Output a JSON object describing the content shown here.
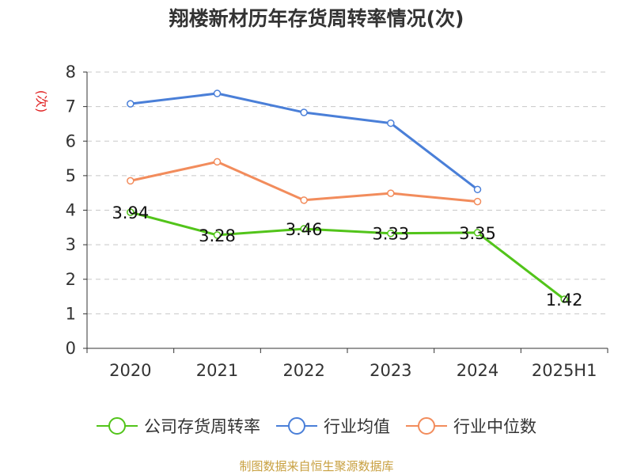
{
  "title": "翔楼新材历年存货周转率情况(次)",
  "footer": "制图数据来自恒生聚源数据库",
  "colors": {
    "company": "#52c41a",
    "industry_avg": "#4a7fd8",
    "industry_median": "#f28c5c",
    "footer": "#c8a040",
    "ylabel": "#e02020"
  },
  "chart_data": {
    "type": "line",
    "title": "翔楼新材历年存货周转率情况(次)",
    "ylabel": "(次)",
    "xlabel": "",
    "categories": [
      "2020",
      "2021",
      "2022",
      "2023",
      "2024",
      "2025H1"
    ],
    "ylim": [
      0,
      8
    ],
    "yticks": [
      0,
      1,
      2,
      3,
      4,
      5,
      6,
      7,
      8
    ],
    "grid": true,
    "legend_position": "bottom",
    "series": [
      {
        "name": "公司存货周转率",
        "values": [
          3.94,
          3.28,
          3.46,
          3.33,
          3.35,
          1.42
        ],
        "labels": [
          "3.94",
          "3.28",
          "3.46",
          "3.33",
          "3.35",
          "1.42"
        ]
      },
      {
        "name": "行业均值",
        "values": [
          7.08,
          7.38,
          6.83,
          6.52,
          4.6,
          null
        ]
      },
      {
        "name": "行业中位数",
        "values": [
          4.85,
          5.4,
          4.29,
          4.49,
          4.25,
          null
        ]
      }
    ]
  }
}
